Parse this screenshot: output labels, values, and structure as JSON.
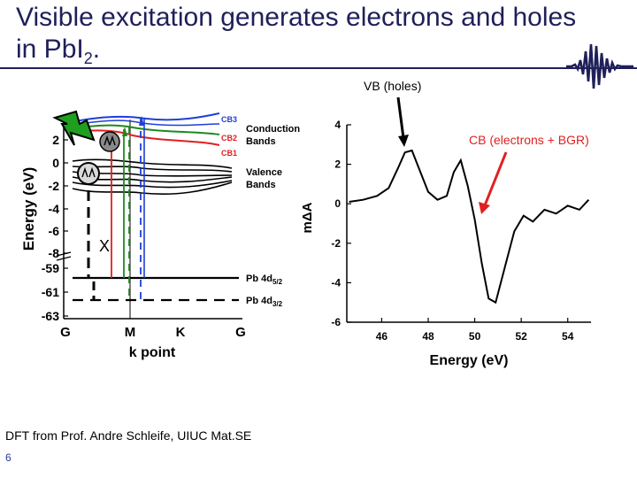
{
  "slide": {
    "title_main": "Visible excitation generates electrons and holes in PbI",
    "title_sub": "2",
    "title_end": ".",
    "footer": "DFT from Prof. Andre Schleife, UIUC Mat.SE",
    "page_number": "6"
  },
  "band_diagram": {
    "ylabel": "Energy (eV)",
    "xlabel": "k point",
    "x_ticks": [
      "G",
      "M",
      "K",
      "G"
    ],
    "y_ticks_upper": [
      "2",
      "0",
      "-2",
      "-4",
      "-6",
      "-8"
    ],
    "y_ticks_lower": [
      "-59",
      "-61",
      "-63"
    ],
    "labels": {
      "cb3": "CB3",
      "cb2": "CB2",
      "cb1": "CB1",
      "conduction1": "Conduction",
      "conduction2": "Bands",
      "valence1": "Valence",
      "valence2": "Bands",
      "pb5_main": "Pb 4d",
      "pb5_sub": "5/2",
      "pb3_main": "Pb 4d",
      "pb3_sub": "3/2",
      "x_mark": "X"
    },
    "colors": {
      "cb3": "#1f3fd6",
      "cb2": "#1e8a1e",
      "cb1": "#e02020",
      "valence": "#000000",
      "node": "#c0c0c0"
    },
    "icons": [
      "lightning-bolt-icon",
      "excited-electron-icon",
      "hole-icon"
    ]
  },
  "chart_data": {
    "type": "line",
    "xlabel": "Energy (eV)",
    "ylabel": "mΔA",
    "xlim": [
      44.5,
      55
    ],
    "ylim": [
      -6,
      4
    ],
    "x_ticks": [
      "46",
      "48",
      "50",
      "52",
      "54"
    ],
    "y_ticks": [
      "4",
      "2",
      "0",
      "-2",
      "-4",
      "-6"
    ],
    "series": [
      {
        "x": [
          44.6,
          45.2,
          45.8,
          46.3,
          46.7,
          47.0,
          47.3,
          47.6,
          48.0,
          48.4,
          48.8,
          49.1,
          49.4,
          49.7,
          50.0,
          50.3,
          50.6,
          50.9,
          51.3,
          51.7,
          52.1,
          52.5,
          53.0,
          53.5,
          54.0,
          54.5,
          54.9
        ],
        "y": [
          0.1,
          0.2,
          0.4,
          0.8,
          1.8,
          2.6,
          2.7,
          1.8,
          0.6,
          0.2,
          0.4,
          1.6,
          2.2,
          0.9,
          -0.8,
          -3.0,
          -4.8,
          -5.0,
          -3.2,
          -1.4,
          -0.6,
          -0.9,
          -0.3,
          -0.5,
          -0.1,
          -0.3,
          0.2
        ]
      }
    ],
    "annotations": [
      {
        "text": "VB (holes)",
        "x": 47.0,
        "y": 2.7
      },
      {
        "text": "CB (electrons + BGR)",
        "x": 50.6,
        "y": 0.2
      }
    ]
  }
}
